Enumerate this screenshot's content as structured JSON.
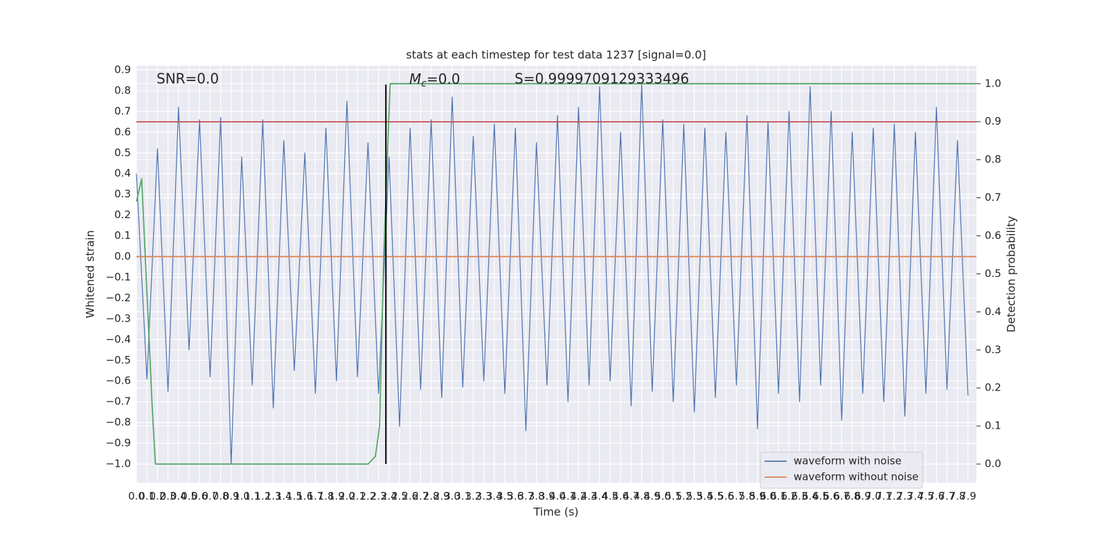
{
  "chart_data": {
    "type": "line",
    "title": "stats at each timestep for test data 1237 [signal=0.0]",
    "xlabel": "Time (s)",
    "ylabel": "Whitened strain",
    "y2label": "Detection probability",
    "annotations": [
      {
        "text": "SNR=0.0"
      },
      {
        "symbol": "M",
        "subscript": "c",
        "text": "=0.0"
      },
      {
        "text": "S=0.9999709129333496"
      }
    ],
    "xlim": [
      0,
      7.98
    ],
    "ylim": [
      -1.09,
      0.92
    ],
    "y2lim": [
      -0.049,
      1.047
    ],
    "xticks": [
      {
        "value": 0,
        "label": "0.0"
      },
      0.1,
      0.2,
      0.3,
      0.4,
      0.5,
      0.6,
      0.7,
      0.8,
      0.9,
      {
        "value": 1,
        "label": "1.0"
      },
      1.1,
      1.2,
      1.3,
      1.4,
      1.5,
      1.6,
      1.7,
      1.8,
      1.9,
      {
        "value": 2,
        "label": "2.0"
      },
      2.1,
      2.2,
      2.3,
      2.4,
      2.5,
      2.6,
      2.7,
      2.8,
      2.9,
      {
        "value": 3,
        "label": "3.0"
      },
      3.1,
      3.2,
      3.3,
      3.4,
      3.5,
      3.6,
      3.7,
      3.8,
      3.9,
      {
        "value": 4,
        "label": "4.0"
      },
      4.1,
      4.2,
      4.3,
      4.4,
      4.5,
      4.6,
      4.7,
      4.8,
      4.9,
      {
        "value": 5,
        "label": "5.0"
      },
      5.1,
      5.2,
      5.3,
      5.4,
      5.5,
      5.6,
      5.7,
      5.8,
      5.9,
      {
        "value": 6,
        "label": "6.0"
      },
      6.1,
      6.2,
      6.3,
      6.4,
      6.5,
      6.6,
      6.7,
      6.8,
      6.9,
      {
        "value": 7,
        "label": "7.0"
      },
      7.1,
      7.2,
      7.3,
      7.4,
      7.5,
      7.6,
      7.7,
      7.8,
      7.9
    ],
    "yticks": [
      {
        "value": -1.0,
        "label": "−1.0"
      },
      {
        "value": -0.9,
        "label": "−0.9"
      },
      {
        "value": -0.8,
        "label": "−0.8"
      },
      {
        "value": -0.7,
        "label": "−0.7"
      },
      {
        "value": -0.6,
        "label": "−0.6"
      },
      {
        "value": -0.5,
        "label": "−0.5"
      },
      {
        "value": -0.4,
        "label": "−0.4"
      },
      {
        "value": -0.3,
        "label": "−0.3"
      },
      {
        "value": -0.2,
        "label": "−0.2"
      },
      {
        "value": -0.1,
        "label": "−0.1"
      },
      {
        "value": 0,
        "label": "0.0"
      },
      0.1,
      0.2,
      0.3,
      0.4,
      0.5,
      0.6,
      0.7,
      0.8,
      0.9
    ],
    "y2ticks": [
      {
        "value": 0,
        "label": "0.0"
      },
      0.1,
      0.2,
      0.3,
      0.4,
      0.5,
      0.6,
      0.7,
      0.8,
      0.9,
      {
        "value": 1,
        "label": "1.0"
      }
    ],
    "grid": true,
    "legend": "lower right",
    "hline": {
      "y": 0.65,
      "color": "#c44e52"
    },
    "vline": {
      "x": 2.37,
      "ymin": -1.0,
      "ymax": 0.83,
      "color": "#000000"
    },
    "series": [
      {
        "name": "waveform with noise",
        "color": "#4c72b0",
        "x": [
          0,
          0.1,
          0.2,
          0.3,
          0.4,
          0.5,
          0.6,
          0.7,
          0.8,
          0.9,
          1,
          1.1,
          1.2,
          1.3,
          1.4,
          1.5,
          1.6,
          1.7,
          1.8,
          1.9,
          2,
          2.1,
          2.2,
          2.3,
          2.4,
          2.5,
          2.6,
          2.7,
          2.8,
          2.9,
          3,
          3.1,
          3.2,
          3.3,
          3.4,
          3.5,
          3.6,
          3.7,
          3.8,
          3.9,
          4,
          4.1,
          4.2,
          4.3,
          4.4,
          4.5,
          4.6,
          4.7,
          4.8,
          4.9,
          5,
          5.1,
          5.2,
          5.3,
          5.4,
          5.5,
          5.6,
          5.7,
          5.8,
          5.9,
          6,
          6.1,
          6.2,
          6.3,
          6.4,
          6.5,
          6.6,
          6.7,
          6.8,
          6.9,
          7,
          7.1,
          7.2,
          7.3,
          7.4,
          7.5,
          7.6,
          7.7,
          7.8,
          7.9
        ],
        "values": [
          0.4,
          -0.59,
          0.52,
          -0.65,
          0.72,
          -0.45,
          0.66,
          -0.58,
          0.67,
          -1.0,
          0.48,
          -0.62,
          0.66,
          -0.73,
          0.56,
          -0.55,
          0.5,
          -0.66,
          0.62,
          -0.6,
          0.75,
          -0.58,
          0.55,
          -0.66,
          0.48,
          -0.82,
          0.62,
          -0.64,
          0.66,
          -0.68,
          0.77,
          -0.63,
          0.58,
          -0.6,
          0.64,
          -0.66,
          0.62,
          -0.84,
          0.55,
          -0.62,
          0.68,
          -0.7,
          0.72,
          -0.62,
          0.82,
          -0.6,
          0.6,
          -0.72,
          0.83,
          -0.65,
          0.66,
          -0.7,
          0.64,
          -0.75,
          0.62,
          -0.68,
          0.6,
          -0.62,
          0.68,
          -0.83,
          0.65,
          -0.66,
          0.7,
          -0.7,
          0.82,
          -0.62,
          0.7,
          -0.79,
          0.6,
          -0.66,
          0.62,
          -0.7,
          0.64,
          -0.77,
          0.6,
          -0.66,
          0.72,
          -0.64,
          0.56,
          -0.67
        ]
      },
      {
        "name": "waveform without noise",
        "color": "#dd8452",
        "x": [
          0,
          7.98
        ],
        "values": [
          0,
          0
        ]
      },
      {
        "color": "#55a868",
        "axis": "y2",
        "x": [
          0,
          0.05,
          0.1,
          0.15,
          0.18,
          1.0,
          2.1,
          2.2,
          2.27,
          2.31,
          2.35,
          2.41,
          7.98
        ],
        "values": [
          0.69,
          0.75,
          0.45,
          0.15,
          0.0,
          0.0,
          0.0,
          0.0,
          0.02,
          0.1,
          0.55,
          1.0,
          1.0
        ]
      }
    ]
  }
}
